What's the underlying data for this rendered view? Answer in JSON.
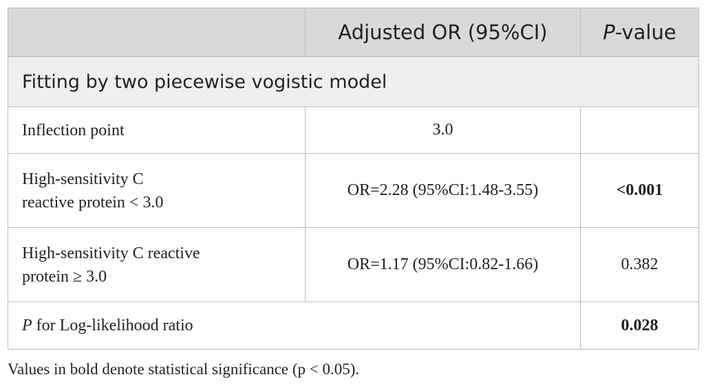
{
  "table": {
    "header": {
      "col1": "",
      "col2": "Adjusted OR (95%CI)",
      "col3_italic": "P",
      "col3_rest": "-value"
    },
    "section": {
      "title": "Fitting by two piecewise vogistic model"
    },
    "rows": [
      {
        "label": "Inflection point",
        "or": "3.0",
        "p": ""
      },
      {
        "label_line1": "High-sensitivity C",
        "label_line2": "reactive protein < 3.0",
        "or": "OR=2.28 (95%CI:1.48-3.55)",
        "p": "<0.001"
      },
      {
        "label_line1": "High-sensitivity C reactive",
        "label_line2": "protein ≥ 3.0",
        "or": "OR=1.17 (95%CI:0.82-1.66)",
        "p": "0.382"
      },
      {
        "label_italic": "P",
        "label_rest": " for Log-likelihood ratio",
        "or": "",
        "p": "0.028"
      }
    ]
  },
  "footnote": "Values in bold denote statistical significance (p < 0.05)."
}
